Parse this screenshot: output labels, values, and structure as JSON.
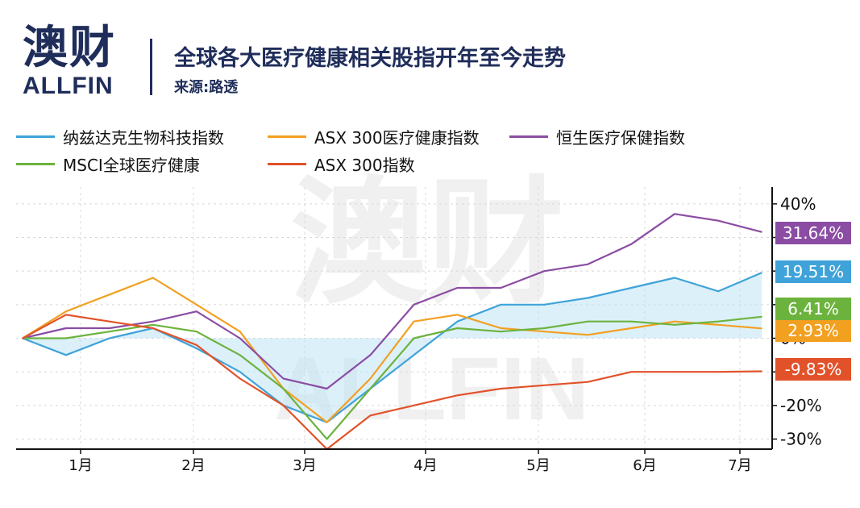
{
  "brand": {
    "cn": "澳财",
    "en": "ALLFIN"
  },
  "header": {
    "title": "全球各大医疗健康相关股指开年至今走势",
    "source": "来源:路透"
  },
  "watermark": {
    "cn": "澳财",
    "en": "ALLFIN"
  },
  "chart_data": {
    "type": "line",
    "title": "全球各大医疗健康相关股指开年至今走势",
    "xlabel": "",
    "ylabel": "",
    "x_ticks": [
      "1月",
      "2月",
      "3月",
      "4月",
      "5月",
      "6月",
      "7月"
    ],
    "y_ticks": [
      "40%",
      "30%",
      "20%",
      "10%",
      "0%",
      "-10%",
      "-20%",
      "-30%"
    ],
    "ylim": [
      -33,
      45
    ],
    "grid": true,
    "legend_position": "top",
    "x_points": [
      "1/1",
      "1/15",
      "2/1",
      "2/15",
      "3/1",
      "3/10",
      "3/17",
      "3/23",
      "4/1",
      "4/15",
      "5/1",
      "5/15",
      "6/1",
      "6/15",
      "7/1",
      "7/10",
      "7/14",
      "7/17"
    ],
    "series": [
      {
        "name": "纳兹达克生物科技指数",
        "color": "#3fa3d9",
        "end_label": "19.51%",
        "values": [
          0,
          -5,
          0,
          3,
          -3,
          -10,
          -20,
          -25,
          -15,
          -5,
          5,
          10,
          10,
          12,
          15,
          18,
          14,
          19.51
        ]
      },
      {
        "name": "ASX 300医疗健康指数",
        "color": "#f2a020",
        "end_label": "2.93%",
        "values": [
          0,
          8,
          13,
          18,
          10,
          2,
          -15,
          -25,
          -12,
          5,
          7,
          3,
          2,
          1,
          3,
          5,
          4,
          2.93
        ]
      },
      {
        "name": "恒生医疗保健指数",
        "color": "#8b4da3",
        "end_label": "31.64%",
        "values": [
          0,
          3,
          3,
          5,
          8,
          0,
          -12,
          -15,
          -5,
          10,
          15,
          15,
          20,
          22,
          28,
          37,
          35,
          31.64
        ]
      },
      {
        "name": "MSCI全球医疗健康",
        "color": "#6cb33e",
        "end_label": "6.41%",
        "values": [
          0,
          0,
          2,
          4,
          2,
          -5,
          -15,
          -30,
          -15,
          0,
          3,
          2,
          3,
          5,
          5,
          4,
          5,
          6.41
        ]
      },
      {
        "name": "ASX 300指数",
        "color": "#e2522a",
        "end_label": "-9.83%",
        "values": [
          0,
          7,
          5,
          3,
          -2,
          -12,
          -20,
          -33,
          -23,
          -20,
          -17,
          -15,
          -14,
          -13,
          -10,
          -10,
          -10,
          -9.83
        ]
      }
    ]
  }
}
